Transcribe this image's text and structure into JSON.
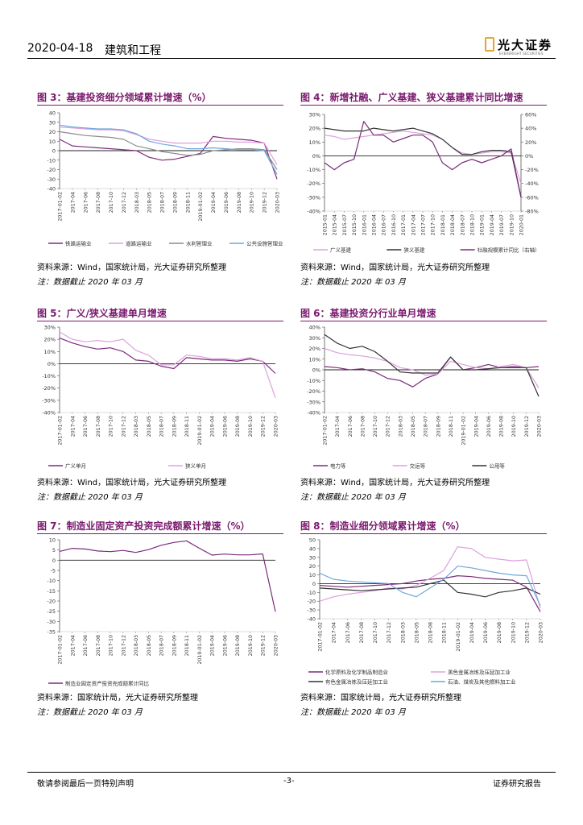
{
  "header": {
    "date": "2020-04-18",
    "section": "建筑和工程",
    "logo_text": "光大证券",
    "logo_subtext": "EVERBRIGHT SECURITIES",
    "brand_color": "#e3a72f"
  },
  "figures": [
    {
      "title": "图 3：基建投资细分领域累计增速（%）",
      "source": "资料来源：Wind，国家统计局，光大证券研究所整理",
      "note": "注：数据截止 2020 年 03 月",
      "chart_data": {
        "type": "line",
        "x": [
          "2017-01-02",
          "2017-04",
          "2017-06",
          "2017-08",
          "2017-10",
          "2017-12",
          "2018-03",
          "2018-05",
          "2018-07",
          "2018-09",
          "2018-11",
          "2019-01-02",
          "2019-04",
          "2019-06",
          "2019-08",
          "2019-10",
          "2019-12",
          "2020-03"
        ],
        "ylim": [
          -40,
          40
        ],
        "yticks": [
          -40,
          -30,
          -20,
          -10,
          0,
          10,
          20,
          30,
          40
        ],
        "series": [
          {
            "name": "铁路运输业",
            "color": "#7b2c7b",
            "values": [
              12,
              5,
              4,
              3,
              2,
              1,
              0,
              -7,
              -10,
              -9,
              -6,
              -3,
              15,
              13,
              12,
              11,
              8,
              -30
            ]
          },
          {
            "name": "道路运输业",
            "color": "#dda0dd",
            "values": [
              25,
              24,
              23,
              22,
              22,
              21,
              17,
              12,
              10,
              8,
              8,
              8,
              10,
              10,
              9,
              9,
              8,
              -15
            ]
          },
          {
            "name": "水利管理业",
            "color": "#8c8c8c",
            "values": [
              20,
              18,
              16,
              15,
              14,
              12,
              5,
              2,
              -1,
              -3,
              -5,
              -4,
              0,
              1,
              2,
              2,
              1,
              -20
            ]
          },
          {
            "name": "公共设施管理业",
            "color": "#6fa8dc",
            "values": [
              27,
              25,
              24,
              23,
              23,
              22,
              18,
              10,
              7,
              5,
              2,
              2,
              3,
              2,
              1,
              1,
              0,
              -25
            ]
          }
        ]
      }
    },
    {
      "title": "图 4：新增社融、广义基建、狭义基建累计同比增速",
      "source": "资料来源：Wind，国家统计局，光大证券研究所整理",
      "note": "注：数据截止 2020 年 03 月",
      "chart_data": {
        "type": "line",
        "x": [
          "2015-01",
          "2015-04",
          "2015-07",
          "2015-10",
          "2016-01",
          "2016-04",
          "2016-07",
          "2016-10",
          "2017-01",
          "2017-04",
          "2017-07",
          "2017-10",
          "2018-01",
          "2018-04",
          "2018-07",
          "2018-10",
          "2019-01",
          "2019-04",
          "2019-07",
          "2019-10",
          "2020-01"
        ],
        "ylim_left": [
          -40,
          30
        ],
        "yticks_left": [
          "-40%",
          "-30%",
          "-20%",
          "-10%",
          "0%",
          "10%",
          "20%",
          "30%"
        ],
        "ylim_right": [
          -80,
          60
        ],
        "yticks_right": [
          "-80%",
          "-60%",
          "-40%",
          "-20%",
          "0%",
          "20%",
          "40%",
          "60%"
        ],
        "series": [
          {
            "name": "广义基建",
            "axis": "left",
            "color": "#dda0dd",
            "values": [
              15,
              14,
              12,
              13,
              14,
              15,
              16,
              17,
              18,
              17,
              16,
              15,
              12,
              6,
              2,
              1,
              2,
              3,
              3,
              2,
              -20
            ]
          },
          {
            "name": "狭义基建",
            "axis": "left",
            "color": "#333333",
            "values": [
              20,
              19,
              18,
              18,
              18,
              20,
              19,
              18,
              19,
              20,
              18,
              16,
              12,
              6,
              1,
              1,
              3,
              4,
              4,
              3,
              -30
            ]
          },
          {
            "name": "社融规模累计同比（右轴）",
            "axis": "right",
            "color": "#7b2c7b",
            "values": [
              -10,
              -20,
              -10,
              -5,
              50,
              30,
              30,
              20,
              25,
              30,
              30,
              20,
              -10,
              -20,
              -10,
              -5,
              -10,
              -5,
              0,
              10,
              -60
            ]
          }
        ]
      }
    },
    {
      "title": "图 5：广义/狭义基建单月增速",
      "source": "资料来源：Wind，国家统计局，光大证券研究所整理",
      "note": "注：数据截止 2020 年 03 月",
      "chart_data": {
        "type": "line",
        "x": [
          "2017-01-02",
          "2017-04",
          "2017-06",
          "2017-08",
          "2017-10",
          "2017-12",
          "2018-03",
          "2018-05",
          "2018-07",
          "2018-09",
          "2018-11",
          "2019-01-02",
          "2019-04",
          "2019-06",
          "2019-08",
          "2019-10",
          "2019-12",
          "2020-03"
        ],
        "ylim": [
          -40,
          30
        ],
        "yticks": [
          "-40%",
          "-30%",
          "-20%",
          "-10%",
          "0%",
          "10%",
          "20%",
          "30%"
        ],
        "series": [
          {
            "name": "广义单月",
            "color": "#7b2c7b",
            "values": [
              21,
              17,
              14,
              12,
              13,
              10,
              3,
              2,
              -2,
              -4,
              5,
              4,
              3,
              3,
              2,
              4,
              2,
              -8
            ]
          },
          {
            "name": "狭义单月",
            "color": "#dda0dd",
            "values": [
              26,
              20,
              18,
              19,
              18,
              20,
              11,
              7,
              -1,
              -1,
              7,
              6,
              4,
              4,
              3,
              5,
              2,
              -28
            ]
          }
        ]
      }
    },
    {
      "title": "图 6：基建投资分行业单月增速",
      "source": "资料来源：Wind，国家统计局，光大证券研究所整理",
      "note": "注：数据截止 2020 年 03 月",
      "chart_data": {
        "type": "line",
        "x": [
          "2017-01-02",
          "2017-04",
          "2017-06",
          "2017-08",
          "2017-10",
          "2017-12",
          "2018-03",
          "2018-05",
          "2018-07",
          "2018-09",
          "2018-11",
          "2019-01-02",
          "2019-04",
          "2019-06",
          "2019-08",
          "2019-10",
          "2019-12",
          "2020-03"
        ],
        "ylim": [
          -40,
          40
        ],
        "yticks": [
          "-40%",
          "-30%",
          "-20%",
          "-10%",
          "0%",
          "10%",
          "20%",
          "30%",
          "40%"
        ],
        "series": [
          {
            "name": "电力等",
            "color": "#7b2c7b",
            "values": [
              3,
              2,
              0,
              1,
              -2,
              -8,
              -10,
              -16,
              -8,
              -4,
              12,
              0,
              2,
              5,
              2,
              3,
              2,
              3
            ]
          },
          {
            "name": "交运等",
            "color": "#dda0dd",
            "values": [
              20,
              16,
              14,
              13,
              11,
              8,
              2,
              0,
              -5,
              -4,
              8,
              5,
              2,
              1,
              3,
              5,
              2,
              -17
            ]
          },
          {
            "name": "公用等",
            "color": "#333333",
            "values": [
              33,
              25,
              20,
              22,
              17,
              8,
              -2,
              -3,
              -3,
              -3,
              12,
              0,
              0,
              1,
              2,
              2,
              2,
              -25
            ]
          }
        ]
      }
    },
    {
      "title": "图 7：制造业固定资产投资完成额累计增速（%）",
      "source": "资料来源：国家统计局，光大证券研究所整理",
      "note": "注：数据截止 2020 年 03 月",
      "chart_data": {
        "type": "line",
        "x": [
          "2017-01-02",
          "2017-04",
          "2017-06",
          "2017-08",
          "2017-10",
          "2017-12",
          "2018-03",
          "2018-05",
          "2018-07",
          "2018-09",
          "2018-11",
          "2019-01-02",
          "2019-04",
          "2019-06",
          "2019-08",
          "2019-10",
          "2019-12",
          "2020-03"
        ],
        "ylim": [
          -35,
          10
        ],
        "yticks": [
          -35,
          -30,
          -25,
          -20,
          -15,
          -10,
          -5,
          0,
          5,
          10
        ],
        "series": [
          {
            "name": "制造业固定资产投资完成额累计同比",
            "color": "#7b2c7b",
            "values": [
              4.3,
              5.8,
              5.5,
              4.5,
              4.2,
              4.8,
              3.8,
              5.2,
              7.3,
              8.7,
              9.5,
              5.9,
              2.5,
              3.0,
              2.6,
              2.6,
              3.1,
              -25.2
            ]
          }
        ]
      }
    },
    {
      "title": "图 8：制造业细分领域累计增速（%）",
      "source": "资料来源：国家统计局，光大证券研究所整理",
      "note": "注：数据截止 2020 年 03 月",
      "chart_data": {
        "type": "line",
        "x": [
          "2017-01-02",
          "2017-04",
          "2017-06",
          "2017-08",
          "2017-10",
          "2017-12",
          "2018-03",
          "2018-05",
          "2018-08",
          "2018-11",
          "2019-01-02",
          "2019-04",
          "2019-06",
          "2019-08",
          "2019-10",
          "2019-12",
          "2020-03"
        ],
        "ylim": [
          -40,
          50
        ],
        "yticks": [
          -40,
          -30,
          -20,
          -10,
          0,
          10,
          20,
          30,
          40,
          50
        ],
        "series": [
          {
            "name": "化学原料及化学制品制造业",
            "color": "#7b2c7b",
            "values": [
              -2,
              -3,
              -4,
              -3,
              -2,
              -1,
              0,
              3,
              5,
              6,
              9,
              8,
              6,
              5,
              4,
              -4,
              -32
            ]
          },
          {
            "name": "黑色金属冶炼及压延加工业",
            "color": "#dda0dd",
            "values": [
              -20,
              -15,
              -12,
              -10,
              -8,
              -5,
              -6,
              -2,
              6,
              15,
              42,
              40,
              30,
              28,
              26,
              27,
              -28
            ]
          },
          {
            "name": "有色金属冶炼及压延加工业",
            "color": "#333333",
            "values": [
              -5,
              -6,
              -7,
              -8,
              -7,
              -6,
              -5,
              -4,
              0,
              4,
              -10,
              -12,
              -15,
              -10,
              -8,
              -5,
              -12
            ]
          },
          {
            "name": "石油、煤炭及其他燃料加工业",
            "color": "#6fa8dc",
            "values": [
              12,
              5,
              3,
              2,
              1,
              0,
              -10,
              -15,
              -5,
              5,
              20,
              18,
              15,
              12,
              10,
              9,
              -25
            ]
          }
        ]
      }
    }
  ],
  "footer": {
    "left": "敬请参阅最后一页特别声明",
    "center": "-3-",
    "right": "证券研究报告"
  }
}
